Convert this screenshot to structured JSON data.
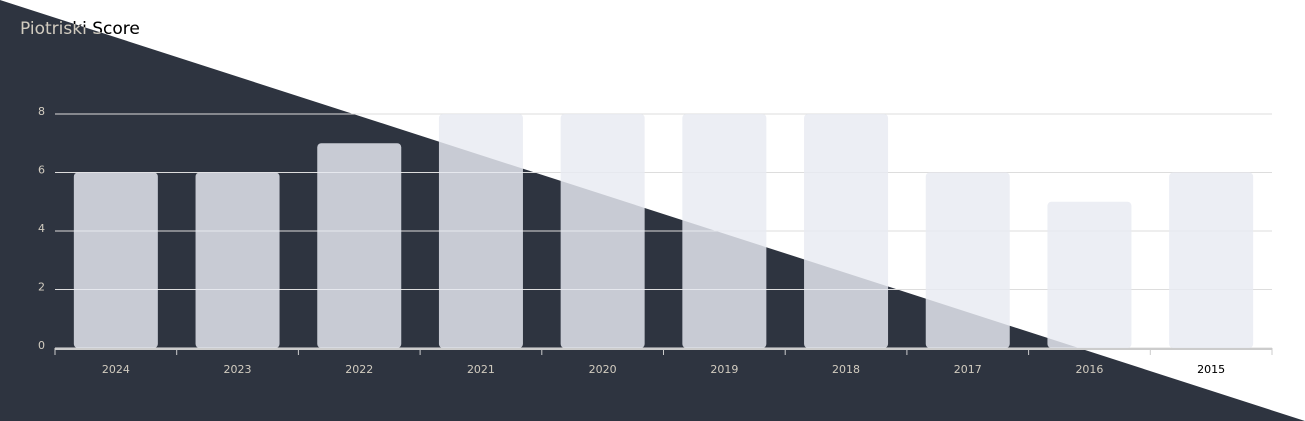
{
  "chart_data": {
    "type": "bar",
    "title": "Piotriski Score",
    "categories": [
      "2024",
      "2023",
      "2022",
      "2021",
      "2020",
      "2019",
      "2018",
      "2017",
      "2016",
      "2015"
    ],
    "values": [
      6,
      6,
      7,
      8,
      8,
      8,
      8,
      6,
      5,
      6
    ],
    "color": "#e8eaf2",
    "ylim": [
      0,
      8
    ],
    "yticks": [
      0,
      2,
      4,
      6,
      8
    ],
    "grid": true
  }
}
